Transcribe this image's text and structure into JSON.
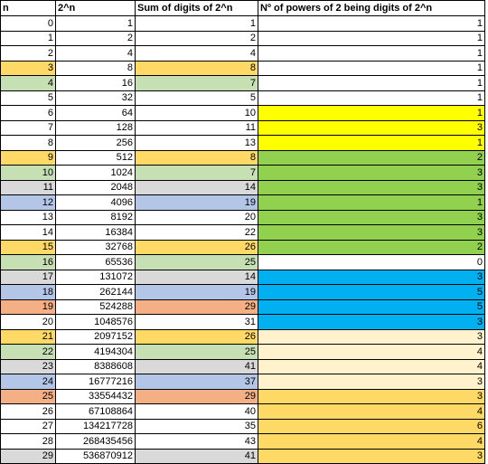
{
  "headers": [
    "n",
    "2^n",
    "Sum of digits of 2^n",
    "Nº of powers of 2 being digits of 2^n"
  ],
  "colors": {
    "none": "#ffffff",
    "orange": "#ffd966",
    "green": "#c6e0b4",
    "gray": "#d9d9d9",
    "blue": "#b4c6e7",
    "salmon": "#f4b084",
    "yellow": "#ffff00",
    "grass": "#92d050",
    "sky": "#00b0f0",
    "cream": "#fff2cc",
    "gold": "#ffd966"
  },
  "rows": [
    {
      "n": "0",
      "pow": "1",
      "sum": "1",
      "count": "1",
      "nc": "none",
      "sc": "none",
      "cc": "none"
    },
    {
      "n": "1",
      "pow": "2",
      "sum": "2",
      "count": "1",
      "nc": "none",
      "sc": "none",
      "cc": "none"
    },
    {
      "n": "2",
      "pow": "4",
      "sum": "4",
      "count": "1",
      "nc": "none",
      "sc": "none",
      "cc": "none"
    },
    {
      "n": "3",
      "pow": "8",
      "sum": "8",
      "count": "1",
      "nc": "orange",
      "sc": "orange",
      "cc": "none"
    },
    {
      "n": "4",
      "pow": "16",
      "sum": "7",
      "count": "1",
      "nc": "green",
      "sc": "green",
      "cc": "none"
    },
    {
      "n": "5",
      "pow": "32",
      "sum": "5",
      "count": "1",
      "nc": "none",
      "sc": "none",
      "cc": "none"
    },
    {
      "n": "6",
      "pow": "64",
      "sum": "10",
      "count": "1",
      "nc": "none",
      "sc": "none",
      "cc": "yellow"
    },
    {
      "n": "7",
      "pow": "128",
      "sum": "11",
      "count": "3",
      "nc": "none",
      "sc": "none",
      "cc": "yellow"
    },
    {
      "n": "8",
      "pow": "256",
      "sum": "13",
      "count": "1",
      "nc": "none",
      "sc": "none",
      "cc": "yellow"
    },
    {
      "n": "9",
      "pow": "512",
      "sum": "8",
      "count": "2",
      "nc": "orange",
      "sc": "orange",
      "cc": "grass"
    },
    {
      "n": "10",
      "pow": "1024",
      "sum": "7",
      "count": "3",
      "nc": "green",
      "sc": "green",
      "cc": "grass"
    },
    {
      "n": "11",
      "pow": "2048",
      "sum": "14",
      "count": "3",
      "nc": "gray",
      "sc": "gray",
      "cc": "grass"
    },
    {
      "n": "12",
      "pow": "4096",
      "sum": "19",
      "count": "1",
      "nc": "blue",
      "sc": "blue",
      "cc": "grass"
    },
    {
      "n": "13",
      "pow": "8192",
      "sum": "20",
      "count": "3",
      "nc": "none",
      "sc": "none",
      "cc": "grass"
    },
    {
      "n": "14",
      "pow": "16384",
      "sum": "22",
      "count": "3",
      "nc": "none",
      "sc": "none",
      "cc": "grass"
    },
    {
      "n": "15",
      "pow": "32768",
      "sum": "26",
      "count": "2",
      "nc": "orange",
      "sc": "orange",
      "cc": "grass"
    },
    {
      "n": "16",
      "pow": "65536",
      "sum": "25",
      "count": "0",
      "nc": "green",
      "sc": "green",
      "cc": "none"
    },
    {
      "n": "17",
      "pow": "131072",
      "sum": "14",
      "count": "3",
      "nc": "gray",
      "sc": "gray",
      "cc": "sky"
    },
    {
      "n": "18",
      "pow": "262144",
      "sum": "19",
      "count": "5",
      "nc": "blue",
      "sc": "blue",
      "cc": "sky"
    },
    {
      "n": "19",
      "pow": "524288",
      "sum": "29",
      "count": "5",
      "nc": "salmon",
      "sc": "salmon",
      "cc": "sky"
    },
    {
      "n": "20",
      "pow": "1048576",
      "sum": "31",
      "count": "3",
      "nc": "none",
      "sc": "none",
      "cc": "sky"
    },
    {
      "n": "21",
      "pow": "2097152",
      "sum": "26",
      "count": "3",
      "nc": "orange",
      "sc": "orange",
      "cc": "cream"
    },
    {
      "n": "22",
      "pow": "4194304",
      "sum": "25",
      "count": "4",
      "nc": "green",
      "sc": "green",
      "cc": "cream"
    },
    {
      "n": "23",
      "pow": "8388608",
      "sum": "41",
      "count": "4",
      "nc": "gray",
      "sc": "gray",
      "cc": "cream"
    },
    {
      "n": "24",
      "pow": "16777216",
      "sum": "37",
      "count": "3",
      "nc": "blue",
      "sc": "blue",
      "cc": "cream"
    },
    {
      "n": "25",
      "pow": "33554432",
      "sum": "29",
      "count": "3",
      "nc": "salmon",
      "sc": "salmon",
      "cc": "gold"
    },
    {
      "n": "26",
      "pow": "67108864",
      "sum": "40",
      "count": "4",
      "nc": "none",
      "sc": "none",
      "cc": "gold"
    },
    {
      "n": "27",
      "pow": "134217728",
      "sum": "35",
      "count": "6",
      "nc": "none",
      "sc": "none",
      "cc": "gold"
    },
    {
      "n": "28",
      "pow": "268435456",
      "sum": "43",
      "count": "4",
      "nc": "none",
      "sc": "none",
      "cc": "gold"
    },
    {
      "n": "29",
      "pow": "536870912",
      "sum": "41",
      "count": "3",
      "nc": "gray",
      "sc": "gray",
      "cc": "gold"
    }
  ]
}
